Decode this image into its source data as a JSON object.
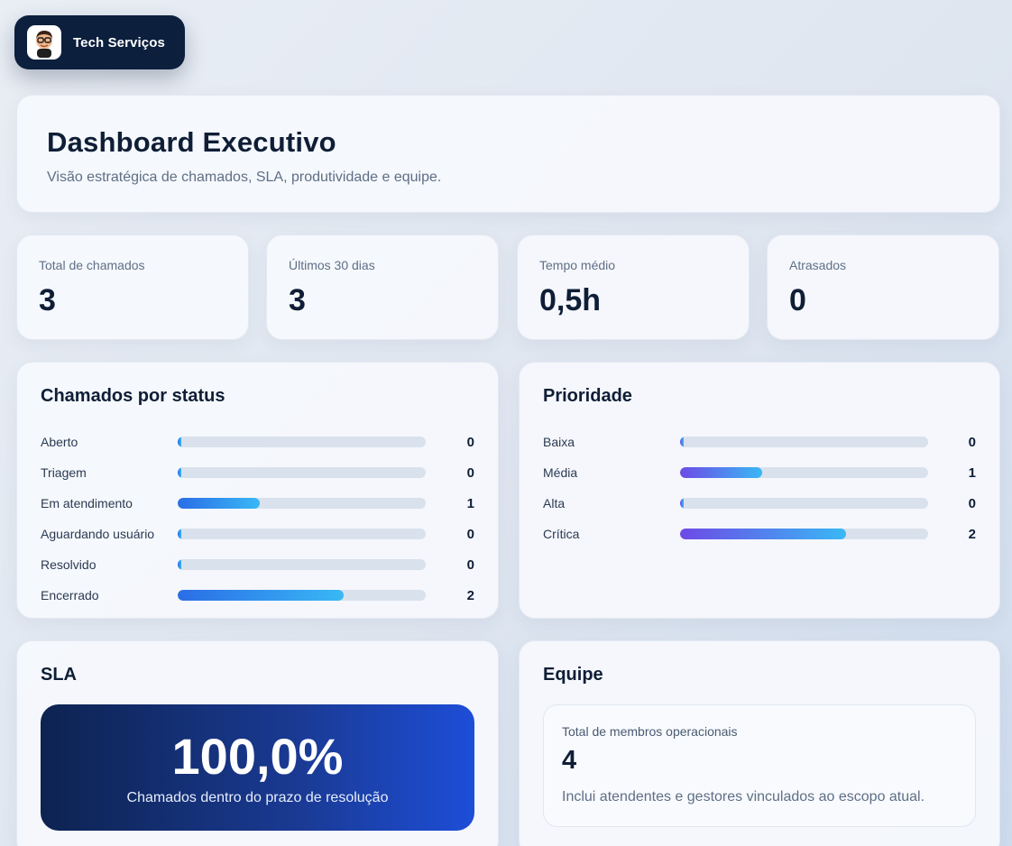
{
  "brand": {
    "name": "Tech Serviços",
    "avatar_icon": "developer-avatar-icon"
  },
  "header": {
    "title": "Dashboard Executivo",
    "subtitle": "Visão estratégica de chamados, SLA, produtividade e equipe."
  },
  "kpis": [
    {
      "label": "Total de chamados",
      "value": "3"
    },
    {
      "label": "Últimos 30 dias",
      "value": "3"
    },
    {
      "label": "Tempo médio",
      "value": "0,5h"
    },
    {
      "label": "Atrasados",
      "value": "0"
    }
  ],
  "status": {
    "title": "Chamados por status",
    "max": 2,
    "items": [
      {
        "label": "Aberto",
        "value": 0,
        "fraction": 0
      },
      {
        "label": "Triagem",
        "value": 0,
        "fraction": 0
      },
      {
        "label": "Em atendimento",
        "value": 1,
        "fraction": 0.33
      },
      {
        "label": "Aguardando usuário",
        "value": 0,
        "fraction": 0
      },
      {
        "label": "Resolvido",
        "value": 0,
        "fraction": 0
      },
      {
        "label": "Encerrado",
        "value": 2,
        "fraction": 0.67
      }
    ]
  },
  "priority": {
    "title": "Prioridade",
    "items": [
      {
        "label": "Baixa",
        "value": 0,
        "fraction": 0
      },
      {
        "label": "Média",
        "value": 1,
        "fraction": 0.33
      },
      {
        "label": "Alta",
        "value": 0,
        "fraction": 0
      },
      {
        "label": "Crítica",
        "value": 2,
        "fraction": 0.67
      }
    ]
  },
  "sla": {
    "title": "SLA",
    "percent": "100,0%",
    "caption": "Chamados dentro do prazo de resolução"
  },
  "team": {
    "title": "Equipe",
    "label": "Total de membros operacionais",
    "value": "4",
    "description": "Inclui atendentes e gestores vinculados ao escopo atual."
  },
  "colors": {
    "navy": "#0c1f3d",
    "bar_blue_start": "#2a6de6",
    "bar_purple_start": "#6d4ae6",
    "bar_end": "#39b8f5",
    "track": "#d9e1ec"
  }
}
